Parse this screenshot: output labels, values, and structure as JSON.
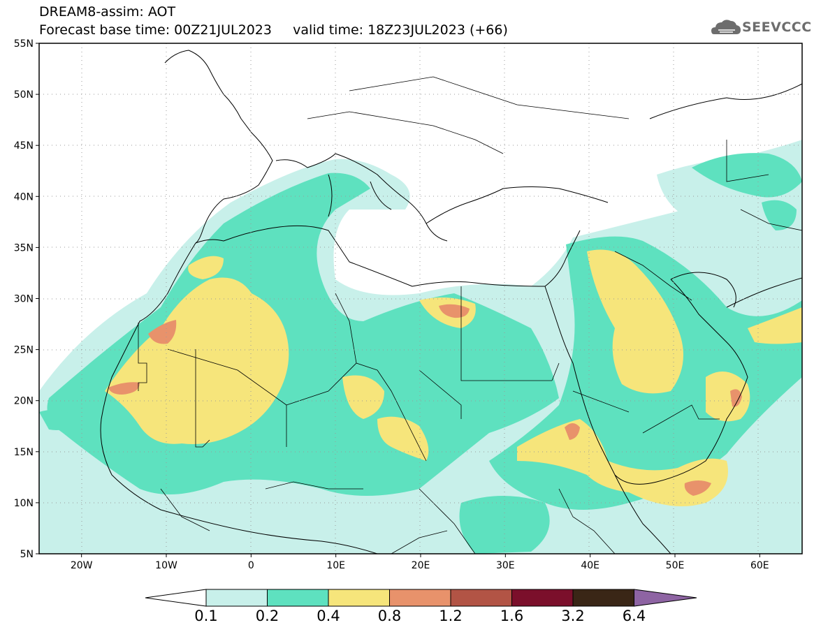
{
  "header": {
    "title": "DREAM8-assim: AOT",
    "subtitle_base": "Forecast base time: 00Z21JUL2023",
    "subtitle_valid": "valid time: 18Z23JUL2023 (+66)"
  },
  "logo": {
    "text": "SEEVCCC",
    "icon": "cloud-icon"
  },
  "map": {
    "lat_labels": [
      "55N",
      "50N",
      "45N",
      "40N",
      "35N",
      "30N",
      "25N",
      "20N",
      "15N",
      "10N",
      "5N"
    ],
    "lon_labels": [
      "20W",
      "10W",
      "0",
      "10E",
      "20E",
      "30E",
      "40E",
      "50E",
      "60E"
    ],
    "lon_range": [
      -25,
      65
    ],
    "lat_range": [
      5,
      55
    ],
    "grid": "dotted"
  },
  "colorbar": {
    "labels": [
      "0.1",
      "0.2",
      "0.4",
      "0.8",
      "1.2",
      "1.6",
      "3.2",
      "6.4"
    ],
    "colors": [
      "#c8f0ea",
      "#5ee1bf",
      "#f6e57b",
      "#e8926b",
      "#b25445",
      "#7b0f2b",
      "#3a2616",
      "#8e64a3"
    ]
  }
}
